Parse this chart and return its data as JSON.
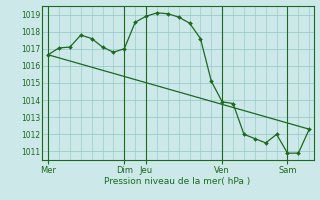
{
  "xlabel": "Pression niveau de la mer( hPa )",
  "ylim": [
    1010.5,
    1019.5
  ],
  "yticks": [
    1011,
    1012,
    1013,
    1014,
    1015,
    1016,
    1017,
    1018,
    1019
  ],
  "background_color": "#cce8e8",
  "grid_color": "#99cccc",
  "line_color": "#1a6b1a",
  "x_day_labels": [
    "Mer",
    "Dim",
    "Jeu",
    "Ven",
    "Sam"
  ],
  "x_day_positions": [
    0,
    3.5,
    4.5,
    8.0,
    11.0
  ],
  "x_vline_positions": [
    0,
    3.5,
    4.5,
    8.0,
    11.0
  ],
  "xlim": [
    -0.3,
    12.2
  ],
  "series1_x": [
    0,
    0.5,
    1.0,
    1.5,
    2.0,
    2.5,
    3.0,
    3.5,
    4.0,
    4.5,
    5.0,
    5.5,
    6.0,
    6.5,
    7.0,
    7.5,
    8.0,
    8.5,
    9.0,
    9.5,
    10.0,
    10.5,
    11.0,
    11.5,
    12.0
  ],
  "series1_y": [
    1016.65,
    1017.05,
    1017.1,
    1017.8,
    1017.6,
    1017.1,
    1016.8,
    1017.0,
    1018.55,
    1018.9,
    1019.1,
    1019.05,
    1018.85,
    1018.5,
    1017.6,
    1015.1,
    1013.9,
    1013.8,
    1012.0,
    1011.75,
    1011.5,
    1012.0,
    1010.9,
    1010.9,
    1012.3
  ],
  "series2_x": [
    0,
    12.0
  ],
  "series2_y": [
    1016.65,
    1012.3
  ]
}
